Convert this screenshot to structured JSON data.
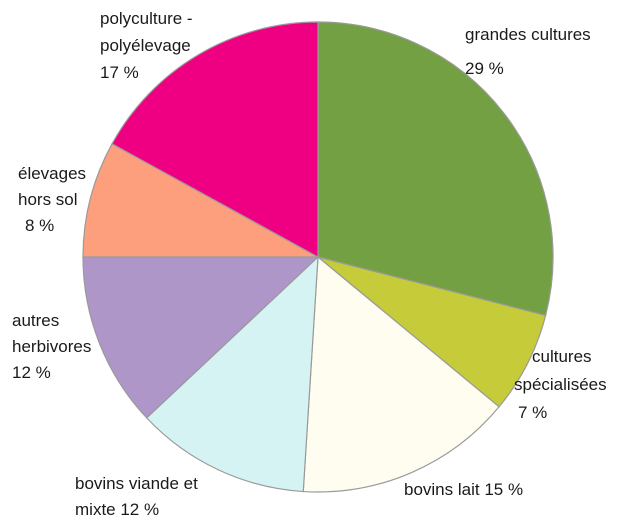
{
  "chart_data": {
    "type": "pie",
    "title": "",
    "slices": [
      {
        "label": "grandes cultures",
        "value": 29,
        "value_text": "29 %",
        "color": "#74a044"
      },
      {
        "label": "cultures spécialisées",
        "value": 7,
        "value_text": "7 %",
        "color": "#c6cb3a"
      },
      {
        "label": "bovins lait",
        "value": 15,
        "value_text": "15 %",
        "color": "#fffdf0"
      },
      {
        "label": "bovins viande et mixte",
        "value": 12,
        "value_text": "12 %",
        "color": "#d6f3f3"
      },
      {
        "label": "autres herbivores",
        "value": 12,
        "value_text": "12 %",
        "color": "#ae96c9"
      },
      {
        "label": "élevages hors sol",
        "value": 8,
        "value_text": "8 %",
        "color": "#fd9e7d"
      },
      {
        "label": "polyculture - polyélevage",
        "value": 17,
        "value_text": "17 %",
        "color": "#ef0082"
      }
    ],
    "start_angle": "12 o'clock",
    "direction": "clockwise",
    "legend": "none",
    "slice_border_color": "#9a9a9a"
  }
}
